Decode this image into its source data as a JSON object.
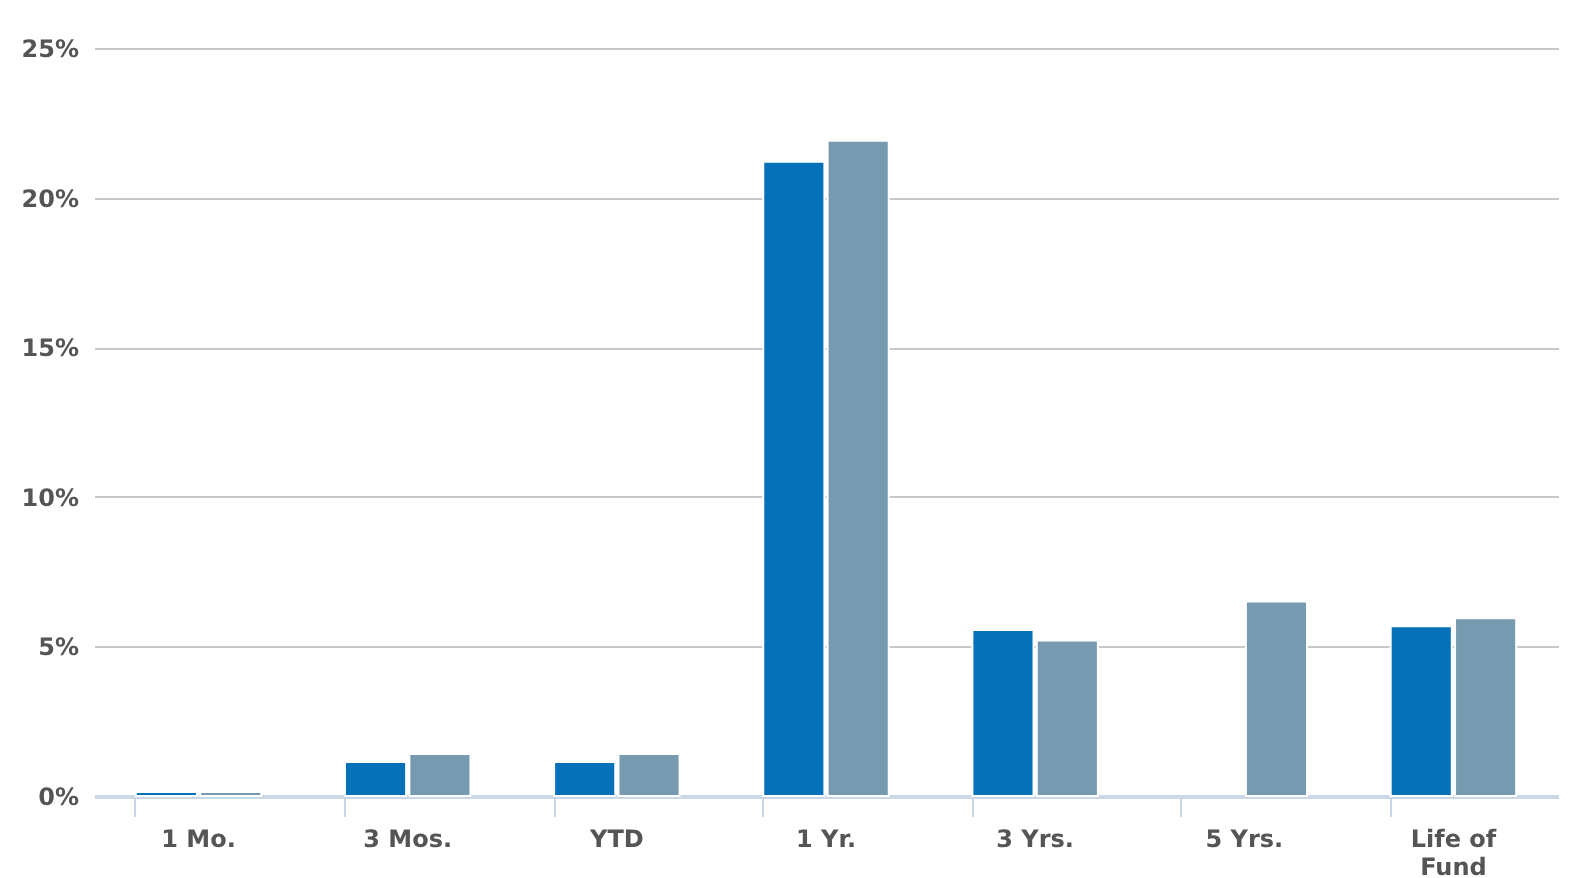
{
  "chart_data": {
    "type": "bar",
    "categories": [
      "1 Mo.",
      "3 Mos.",
      "YTD",
      "1 Yr.",
      "3 Yrs.",
      "5 Yrs.",
      "Life of Fund"
    ],
    "series": [
      {
        "color": "#0571b8",
        "values": [
          0.13,
          1.14,
          1.14,
          21.2,
          5.55,
          null,
          5.67
        ]
      },
      {
        "color": "#769bb0",
        "values": [
          0.13,
          1.4,
          1.4,
          21.9,
          5.2,
          6.5,
          5.94
        ]
      }
    ],
    "ylim": [
      0,
      25
    ],
    "yticks": [
      {
        "value": 0,
        "label": "0%"
      },
      {
        "value": 5,
        "label": "5%"
      },
      {
        "value": 10,
        "label": "10%"
      },
      {
        "value": 15,
        "label": "15%"
      },
      {
        "value": 20,
        "label": "20%"
      },
      {
        "value": 25,
        "label": "25%"
      }
    ],
    "grid": "y",
    "legend": false
  }
}
